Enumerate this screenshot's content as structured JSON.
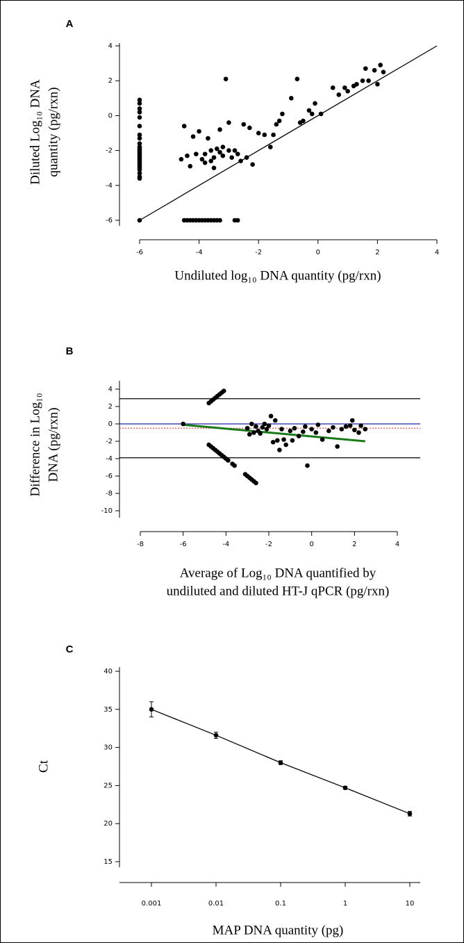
{
  "chart_data": [
    {
      "type": "scatter",
      "panel_label": "A",
      "ylabel": [
        "Diluted Log₁₀ DNA",
        "quantity (pg/rxn)"
      ],
      "xlabel": [
        "Undiluted log₁₀ DNA quantity (pg/rxn)"
      ],
      "xlim": [
        -6,
        4
      ],
      "xticks": [
        -6,
        -4,
        -2,
        0,
        2,
        4
      ],
      "ylim": [
        -6,
        4
      ],
      "yticks": [
        -6,
        -4,
        -2,
        0,
        2,
        4
      ],
      "color": "#000000",
      "x": [
        -6,
        -6,
        -6,
        -6,
        -6,
        -6,
        -6,
        -6,
        -6,
        -6,
        -6,
        -6,
        -6,
        -6,
        -6,
        -6,
        -6,
        -6,
        -6,
        -6,
        -6,
        -6,
        -6,
        -6,
        -6,
        -6,
        -6,
        -4.5,
        -4.4,
        -4.3,
        -4.2,
        -4.1,
        -4.0,
        -3.9,
        -3.8,
        -3.7,
        -3.6,
        -3.5,
        -3.4,
        -3.3,
        -2.8,
        -2.7,
        -4.6,
        -4.5,
        -4.4,
        -4.3,
        -4.2,
        -4.1,
        -4.0,
        -3.9,
        -3.8,
        -3.8,
        -3.7,
        -3.6,
        -3.6,
        -3.5,
        -3.5,
        -3.4,
        -3.3,
        -3.3,
        -3.2,
        -3.2,
        -3.1,
        -3.0,
        -3.0,
        -2.9,
        -2.8,
        -2.7,
        -2.6,
        -2.5,
        -2.4,
        -2.3,
        -2.2,
        -2.0,
        -1.8,
        -1.6,
        -1.5,
        -1.4,
        -1.3,
        -1.2,
        -0.9,
        -0.7,
        -0.6,
        -0.5,
        -0.3,
        -0.2,
        -0.1,
        0.1,
        0.5,
        0.7,
        0.9,
        1.0,
        1.2,
        1.3,
        1.5,
        1.6,
        1.7,
        1.9,
        2.0,
        2.1,
        2.2
      ],
      "values": [
        0.9,
        0.7,
        0.4,
        0.2,
        -0.1,
        -0.6,
        -1.1,
        -1.3,
        -1.6,
        -1.8,
        -1.9,
        -2.0,
        -2.1,
        -2.2,
        -2.3,
        -2.4,
        -2.5,
        -2.6,
        -2.7,
        -2.8,
        -2.9,
        -3.0,
        -3.1,
        -3.3,
        -3.5,
        -3.6,
        -6,
        -6,
        -6,
        -6,
        -6,
        -6,
        -6,
        -6,
        -6,
        -6,
        -6,
        -6,
        -6,
        -6,
        -6,
        -6,
        -2.5,
        -0.6,
        -2.3,
        -2.9,
        -1.2,
        -2.2,
        -0.9,
        -2.5,
        -2.7,
        -2.2,
        -1.3,
        -2.0,
        -2.6,
        -3.0,
        -2.4,
        -1.9,
        -2.1,
        -0.8,
        -1.8,
        -2.3,
        2.1,
        -2.0,
        -0.4,
        -2.4,
        -2.0,
        -2.2,
        -2.6,
        -0.5,
        -2.4,
        -0.7,
        -2.8,
        -1.0,
        -1.1,
        -1.8,
        -1.1,
        -0.5,
        -0.3,
        0.1,
        1.0,
        2.1,
        -0.4,
        -0.3,
        0.3,
        0.1,
        0.7,
        0.1,
        1.6,
        1.2,
        1.6,
        1.4,
        1.7,
        1.8,
        2.0,
        2.7,
        2.0,
        2.6,
        1.8,
        2.9,
        2.5
      ],
      "reference_line": {
        "x": [
          -6,
          4
        ],
        "values": [
          -6,
          4
        ],
        "color": "#000000"
      }
    },
    {
      "type": "scatter",
      "panel_label": "B",
      "ylabel": [
        "Difference in Log₁₀",
        "DNA (pg/rxn)"
      ],
      "xlabel": [
        "Average of Log₁₀ DNA quantified by",
        "undiluted and diluted HT-J qPCR (pg/rxn)"
      ],
      "xlim": [
        -8,
        4
      ],
      "xticks": [
        -8,
        -6,
        -4,
        -2,
        0,
        2,
        4
      ],
      "ylim": [
        -10,
        4
      ],
      "yticks": [
        -10,
        -8,
        -6,
        -4,
        -2,
        0,
        2,
        4
      ],
      "color": "#000000",
      "x": [
        -6.0,
        -4.8,
        -4.7,
        -4.6,
        -4.5,
        -4.4,
        -4.3,
        -4.2,
        -4.1,
        -4.8,
        -4.7,
        -4.6,
        -4.5,
        -4.4,
        -4.3,
        -4.2,
        -4.1,
        -4.0,
        -3.9,
        -3.7,
        -3.6,
        -3.1,
        -3.0,
        -2.9,
        -2.8,
        -2.7,
        -2.6,
        -3.0,
        -2.9,
        -2.8,
        -2.7,
        -2.6,
        -2.5,
        -2.4,
        -2.3,
        -2.2,
        -2.1,
        -2.0,
        -1.9,
        -1.8,
        -1.7,
        -1.6,
        -1.5,
        -1.4,
        -1.3,
        -1.2,
        -1.0,
        -0.9,
        -0.8,
        -0.6,
        -0.4,
        -0.3,
        -0.2,
        0.0,
        0.2,
        0.3,
        0.5,
        0.8,
        1.0,
        1.2,
        1.4,
        1.6,
        1.8,
        1.9,
        2.0,
        2.2,
        2.3,
        2.5
      ],
      "values": [
        0.0,
        2.4,
        2.6,
        2.8,
        3.0,
        3.2,
        3.4,
        3.6,
        3.8,
        -2.4,
        -2.6,
        -2.8,
        -3.0,
        -3.2,
        -3.4,
        -3.6,
        -3.8,
        -4.0,
        -4.2,
        -4.6,
        -4.8,
        -5.8,
        -6.0,
        -6.2,
        -6.4,
        -6.6,
        -6.8,
        -0.5,
        -1.2,
        0.0,
        -1.0,
        -0.3,
        -0.8,
        -1.1,
        -0.4,
        0.0,
        -0.6,
        -0.2,
        0.9,
        -2.1,
        0.4,
        -1.9,
        -3.0,
        -0.6,
        -1.8,
        -2.4,
        -0.8,
        -1.9,
        -0.5,
        -1.4,
        -0.9,
        -0.3,
        -4.8,
        -0.6,
        -1.0,
        -0.1,
        -1.8,
        -0.8,
        -0.4,
        -2.6,
        -0.6,
        -0.3,
        -0.2,
        0.4,
        -0.7,
        -1.0,
        -0.2,
        -0.6
      ],
      "hlines": [
        {
          "value": 2.9,
          "color": "#000000",
          "style": "solid"
        },
        {
          "value": 0,
          "color": "#2020b0",
          "style": "solid"
        },
        {
          "value": -0.5,
          "color": "#e05050",
          "style": "dotted"
        },
        {
          "value": -3.9,
          "color": "#000000",
          "style": "solid"
        }
      ],
      "regression_line": {
        "x": [
          -6,
          2.5
        ],
        "values": [
          -0.1,
          -2.0
        ],
        "color": "#1a7a1a"
      }
    },
    {
      "type": "line",
      "panel_label": "C",
      "ylabel": [
        "Ct"
      ],
      "xlabel": [
        "MAP DNA quantity (pg)"
      ],
      "categories": [
        "0.001",
        "0.01",
        "0.1",
        "1",
        "10"
      ],
      "values": [
        35.0,
        31.6,
        28.0,
        24.7,
        21.3
      ],
      "errors": [
        1.0,
        0.4,
        0.25,
        0.2,
        0.3
      ],
      "ylim": [
        15,
        40
      ],
      "yticks": [
        15,
        20,
        25,
        30,
        35,
        40
      ],
      "color": "#000000"
    }
  ]
}
